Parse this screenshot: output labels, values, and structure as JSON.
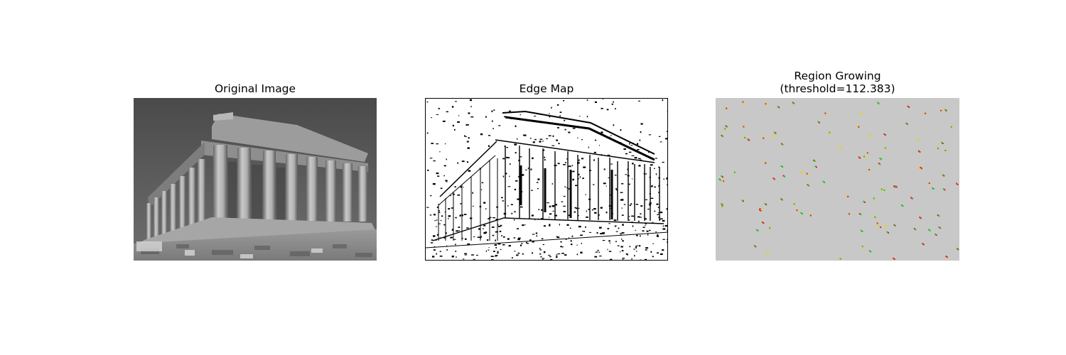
{
  "figure": {
    "panels": [
      {
        "title": "Original Image",
        "image": "grayscale photograph of the Parthenon with columns"
      },
      {
        "title": "Edge Map",
        "image": "binary edge map of the temple (black edges on white)"
      },
      {
        "title_line1": "Region Growing",
        "title_line2": "(threshold=112.383)",
        "image": "gray field with small red, yellow and green seed markers"
      }
    ],
    "colors": {
      "region_fill": "#c8c8c8",
      "seed_red": "#d42a1a",
      "seed_yellow": "#f0d000",
      "seed_green": "#1fc01f"
    }
  }
}
